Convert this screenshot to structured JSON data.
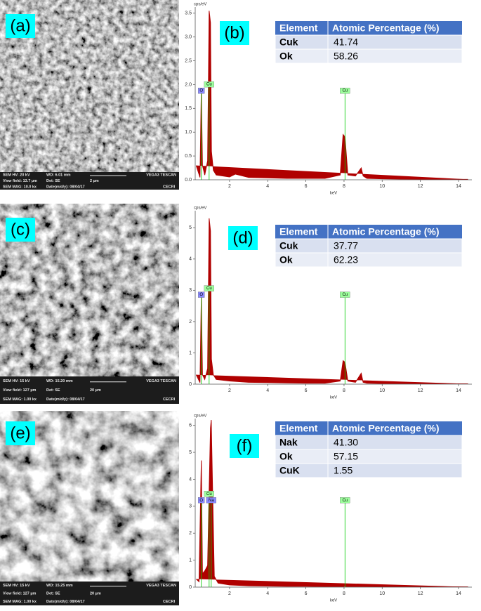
{
  "sem_images": [
    {
      "label": "(a)",
      "info": [
        [
          "SEM HV: 20 kV",
          "WD: 6.01 mm",
          "VEGA3 TESCAN"
        ],
        [
          "View field: 13.7 µm",
          "Det: SE",
          "2 µm"
        ],
        [
          "SEM MAG: 10.0 kx",
          "Date(m/d/y): 08/04/17",
          "CECRI"
        ]
      ]
    },
    {
      "label": "(c)",
      "info": [
        [
          "SEM HV: 15 kV",
          "WD: 15.20 mm",
          "VEGA3 TESCAN"
        ],
        [
          "View field: 127 µm",
          "Det: SE",
          "20 µm"
        ],
        [
          "SEM MAG: 1.00 kx",
          "Date(m/d/y): 08/04/17",
          "CECRI"
        ]
      ]
    },
    {
      "label": "(e)",
      "info": [
        [
          "SEM HV: 15 kV",
          "WD: 15.25 mm",
          "VEGA3 TESCAN"
        ],
        [
          "View field: 127 µm",
          "Det: SE",
          "20 µm"
        ],
        [
          "SEM MAG: 1.00 kx",
          "Date(m/d/y): 08/04/17",
          "CECRI"
        ]
      ]
    }
  ],
  "chart_data": [
    {
      "type": "spectrum",
      "label": "(b)",
      "y_label": "cps/eV",
      "x_label": "keV",
      "color": "#b00000",
      "x": [
        0.25,
        0.45,
        0.52,
        0.58,
        0.7,
        0.85,
        0.93,
        1.0,
        1.05,
        1.15,
        1.3,
        2,
        2.3,
        3,
        4,
        5,
        6,
        7,
        7.8,
        7.95,
        8.05,
        8.2,
        8.6,
        8.9,
        9.0,
        9.2,
        10,
        12,
        14.5
      ],
      "values": [
        0.3,
        0.05,
        1.9,
        0.3,
        0.1,
        0.4,
        3.55,
        3.3,
        0.6,
        0.2,
        0.1,
        0.06,
        0.12,
        0.05,
        0.04,
        0.03,
        0.03,
        0.03,
        0.1,
        0.95,
        0.9,
        0.1,
        0.08,
        0.25,
        0.08,
        0.03,
        0.02,
        0.01,
        0.01
      ],
      "xlim": [
        0.2,
        14.7
      ],
      "ylim": [
        0,
        3.6
      ],
      "xticks": [
        2,
        4,
        6,
        8,
        10,
        12,
        14
      ],
      "yticks": [
        {
          "value": 0,
          "label": "0.0"
        },
        0.5,
        {
          "value": 1,
          "label": "1.0"
        },
        1.5,
        {
          "value": 2,
          "label": "2.0"
        },
        2.5,
        {
          "value": 3,
          "label": "3.0"
        },
        3.5
      ],
      "annotations": [
        {
          "text": "O",
          "x": 0.52,
          "color": "#8a8aff"
        },
        {
          "text": "Cu",
          "x": 0.93,
          "color": "#9cff9c"
        },
        {
          "text": "Cu",
          "x": 8.05,
          "color": "#9cff9c"
        }
      ],
      "table": {
        "header": [
          "Element",
          "Atomic Percentage (%)"
        ],
        "rows": [
          [
            "Cuk",
            "41.74"
          ],
          [
            "Ok",
            "58.26"
          ]
        ]
      }
    },
    {
      "type": "spectrum",
      "label": "(d)",
      "y_label": "cps/eV",
      "x_label": "keV",
      "color": "#b00000",
      "x": [
        0.25,
        0.45,
        0.52,
        0.58,
        0.7,
        0.85,
        0.93,
        1.0,
        1.05,
        1.15,
        1.3,
        2,
        3,
        4,
        5,
        6,
        7,
        7.8,
        7.95,
        8.05,
        8.2,
        8.6,
        8.9,
        9.0,
        9.2,
        10,
        12,
        14.5
      ],
      "values": [
        0.3,
        0.05,
        2.8,
        0.3,
        0.15,
        0.5,
        5.3,
        4.9,
        0.8,
        0.3,
        0.15,
        0.1,
        0.06,
        0.05,
        0.04,
        0.03,
        0.03,
        0.1,
        0.75,
        0.7,
        0.1,
        0.06,
        0.35,
        0.06,
        0.03,
        0.02,
        0.01,
        0.01
      ],
      "xlim": [
        0.2,
        14.7
      ],
      "ylim": [
        0,
        5.5
      ],
      "xticks": [
        2,
        4,
        6,
        8,
        10,
        12,
        14
      ],
      "yticks": [
        0,
        1,
        2,
        3,
        4,
        5
      ],
      "annotations": [
        {
          "text": "O",
          "x": 0.52,
          "color": "#8a8aff"
        },
        {
          "text": "Cu",
          "x": 0.93,
          "color": "#9cff9c"
        },
        {
          "text": "Cu",
          "x": 8.05,
          "color": "#9cff9c"
        }
      ],
      "table": {
        "header": [
          "Element",
          "Atomic Percentage (%)"
        ],
        "rows": [
          [
            "Cuk",
            "37.77"
          ],
          [
            "Ok",
            "62.23"
          ]
        ]
      }
    },
    {
      "type": "spectrum",
      "label": "(f)",
      "y_label": "cps/eV",
      "x_label": "keV",
      "color": "#b00000",
      "x": [
        0.25,
        0.4,
        0.52,
        0.58,
        0.7,
        0.85,
        0.93,
        1.0,
        1.04,
        1.1,
        1.2,
        1.4,
        2,
        3,
        4,
        5,
        6,
        7,
        8,
        8.05,
        8.1,
        9,
        10,
        12,
        14.5
      ],
      "values": [
        0.3,
        0.2,
        4.7,
        0.5,
        0.6,
        0.8,
        3.6,
        5.9,
        6.2,
        4.0,
        0.4,
        0.15,
        0.08,
        0.05,
        0.04,
        0.03,
        0.03,
        0.02,
        0.02,
        0.05,
        0.02,
        0.02,
        0.01,
        0.01,
        0.01
      ],
      "xlim": [
        0.2,
        14.7
      ],
      "ylim": [
        0,
        6.2
      ],
      "xticks": [
        2,
        4,
        6,
        8,
        10,
        12,
        14
      ],
      "yticks": [
        0,
        1,
        2,
        3,
        4,
        5,
        6
      ],
      "annotations": [
        {
          "text": "O",
          "x": 0.52,
          "color": "#8a8aff"
        },
        {
          "text": "Cu",
          "x": 0.93,
          "color": "#9cff9c"
        },
        {
          "text": "Na",
          "x": 1.04,
          "color": "#8a8aff"
        },
        {
          "text": "Cu",
          "x": 8.05,
          "color": "#9cff9c"
        }
      ],
      "table": {
        "header": [
          "Element",
          "Atomic Percentage (%)"
        ],
        "rows": [
          [
            "Nak",
            "41.30"
          ],
          [
            "Ok",
            "57.15"
          ],
          [
            "CuK",
            "1.55"
          ]
        ]
      }
    }
  ]
}
